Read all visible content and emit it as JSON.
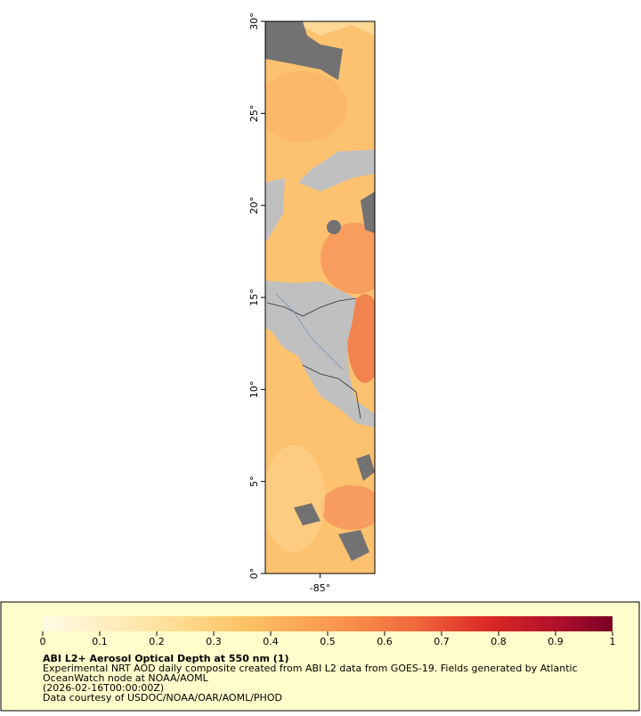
{
  "map": {
    "lat_range": [
      0,
      30
    ],
    "lon_range": [
      -88,
      -82
    ],
    "lat_ticks": [
      {
        "value": 0,
        "label": "0°"
      },
      {
        "value": 5,
        "label": "5°"
      },
      {
        "value": 10,
        "label": "10°"
      },
      {
        "value": 15,
        "label": "15°"
      },
      {
        "value": 20,
        "label": "20°"
      },
      {
        "value": 25,
        "label": "25°"
      },
      {
        "value": 30,
        "label": "30°"
      }
    ],
    "lon_ticks": [
      {
        "value": -85,
        "label": "-85°"
      }
    ]
  },
  "colorbar": {
    "range": [
      0,
      1
    ],
    "ticks": [
      0,
      0.1,
      0.2,
      0.3,
      0.4,
      0.5,
      0.6,
      0.7,
      0.8,
      0.9,
      1
    ]
  },
  "legend": {
    "title": "ABI L2+ Aerosol Optical Depth at 550 nm (1)",
    "lines": [
      "Experimental NRT AOD daily composite created from ABI L2 data from GOES-19. Fields generated by Atlantic",
      "OceanWatch node at NOAA/AOML",
      "(2026-02-16T00:00:00Z)",
      "Data courtesy of USDOC/NOAA/OAR/AOML/PHOD"
    ]
  }
}
